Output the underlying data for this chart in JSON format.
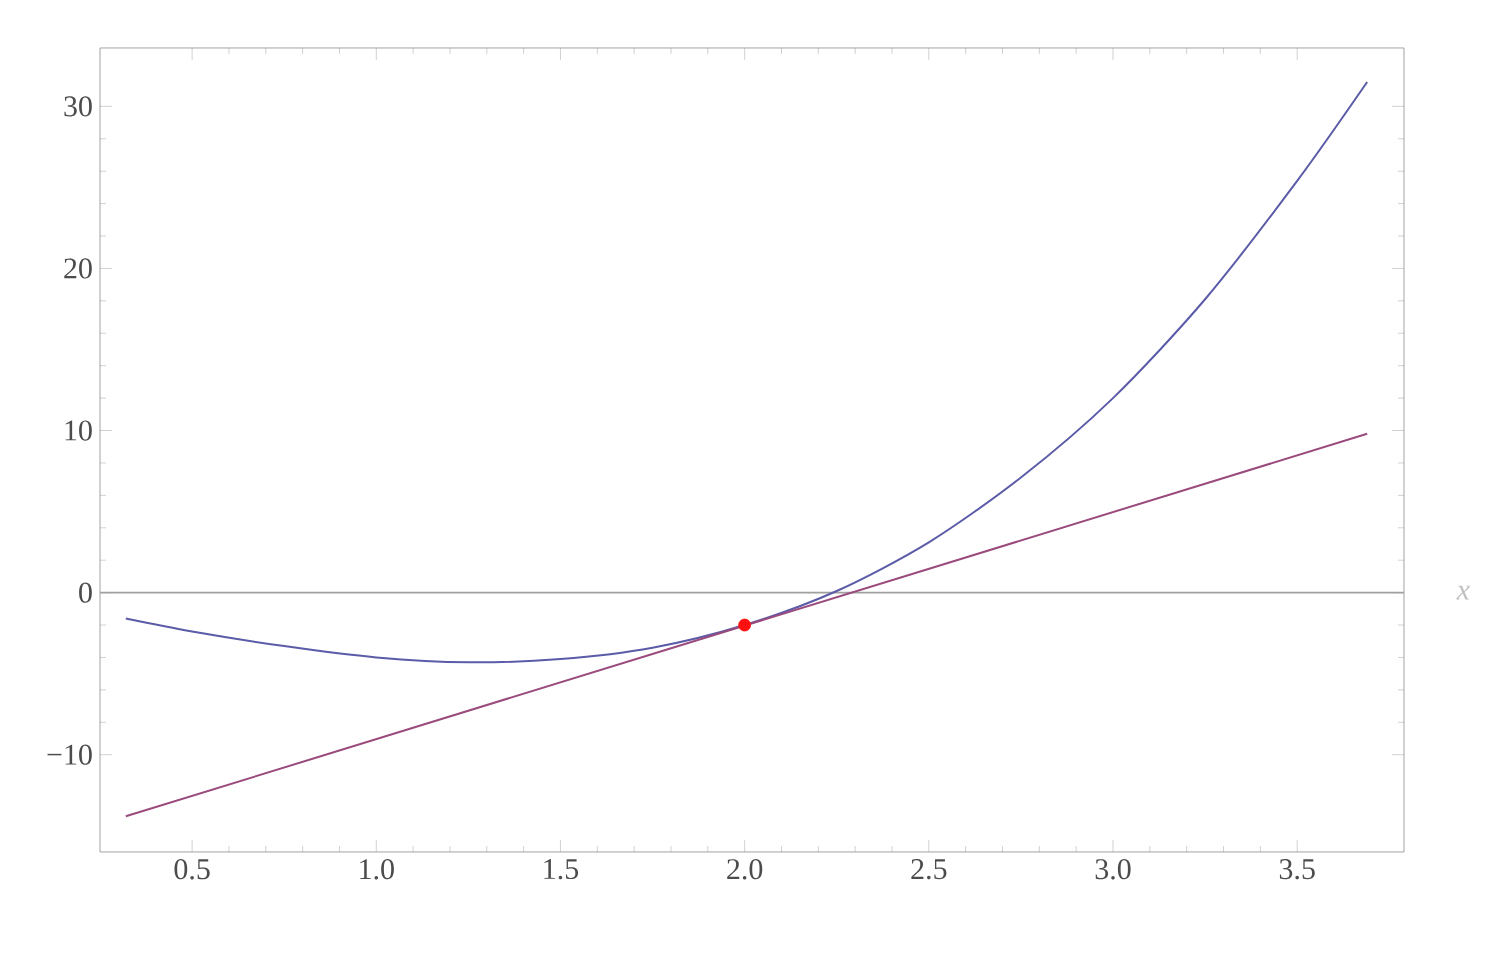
{
  "chart_data": {
    "type": "line",
    "xlabel": "x",
    "xlim": [
      0.25,
      3.79
    ],
    "ylim": [
      -16,
      33.6
    ],
    "xticks": [
      {
        "value": 0.5,
        "label": "0.5"
      },
      {
        "value": 1.0,
        "label": "1.0"
      },
      {
        "value": 1.5,
        "label": "1.5"
      },
      {
        "value": 2.0,
        "label": "2.0"
      },
      {
        "value": 2.5,
        "label": "2.5"
      },
      {
        "value": 3.0,
        "label": "3.0"
      },
      {
        "value": 3.5,
        "label": "3.5"
      }
    ],
    "yticks": [
      {
        "value": -10,
        "label": "−10"
      },
      0,
      10,
      20,
      30
    ],
    "ref_lines": [
      {
        "axis": "y",
        "value": 0,
        "color": "#a0a0a0"
      }
    ],
    "series": [
      {
        "color": "#5b5ba8",
        "x": [
          0.32,
          0.5,
          0.75,
          1.0,
          1.25,
          1.5,
          1.75,
          2.0,
          2.25,
          2.5,
          2.75,
          3.0,
          3.25,
          3.5,
          3.69
        ],
        "values": [
          -1.6,
          -2.4,
          -3.3,
          -4.0,
          -4.3,
          -4.1,
          -3.4,
          -2.0,
          0.1,
          3.1,
          7.1,
          12.0,
          18.1,
          25.4,
          31.5
        ]
      },
      {
        "color": "#9a4a7c",
        "x": [
          0.32,
          3.69
        ],
        "values": [
          -13.8,
          9.8
        ]
      },
      {
        "type": "scatter",
        "color": "#ff1010",
        "marker": "circle",
        "x": [
          2.0
        ],
        "values": [
          -2.0
        ]
      }
    ]
  }
}
